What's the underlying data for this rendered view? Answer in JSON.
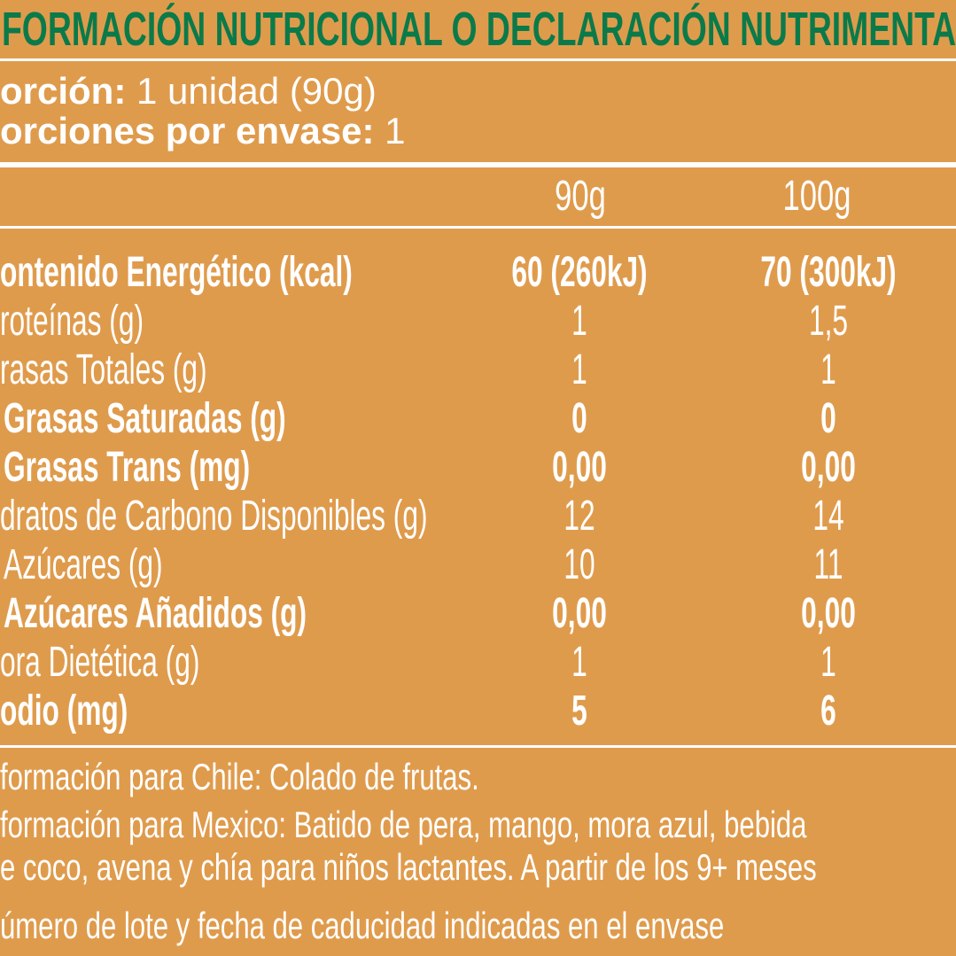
{
  "title": "FORMACIÓN NUTRICIONAL O DECLARACIÓN NUTRIMENTAL",
  "portion": {
    "label": "orción:",
    "value": " 1 unidad (90g)"
  },
  "portions_per_pack": {
    "label": "orciones por envase:",
    "value": " 1"
  },
  "columns": [
    "90g",
    "100g"
  ],
  "rows": [
    {
      "label": "ontenido Energético (kcal)",
      "v90": "60 (260kJ)",
      "v100": "70 (300kJ)",
      "bold": true
    },
    {
      "label": "roteínas (g)",
      "v90": "1",
      "v100": "1,5",
      "bold": false
    },
    {
      "label": "rasas Totales (g)",
      "v90": "1",
      "v100": "1",
      "bold": false
    },
    {
      "label": "Grasas Saturadas (g)",
      "v90": "0",
      "v100": "0",
      "bold": true
    },
    {
      "label": "Grasas Trans (mg)",
      "v90": "0,00",
      "v100": "0,00",
      "bold": true
    },
    {
      "label": "dratos de Carbono Disponibles (g)",
      "v90": "12",
      "v100": "14",
      "bold": false
    },
    {
      "label": "Azúcares (g)",
      "v90": "10",
      "v100": "11",
      "bold": false
    },
    {
      "label": "Azúcares Añadidos (g)",
      "v90": "0,00",
      "v100": "0,00",
      "bold": true
    },
    {
      "label": "ora Dietética (g)",
      "v90": "1",
      "v100": "1",
      "bold": false
    },
    {
      "label": "odio (mg)",
      "v90": "5",
      "v100": "6",
      "bold": true
    }
  ],
  "footer": [
    "formación para Chile: Colado de frutas.",
    "formación para Mexico: Batido de pera, mango, mora azul, bebida",
    "e coco, avena  y chía para niños lactantes. A partir de los 9+ meses",
    "úmero de lote y fecha de caducidad indicadas en el envase"
  ],
  "colors": {
    "background": "#DF9B4C",
    "title": "#0B7A4A",
    "text": "#FFFFFF"
  }
}
